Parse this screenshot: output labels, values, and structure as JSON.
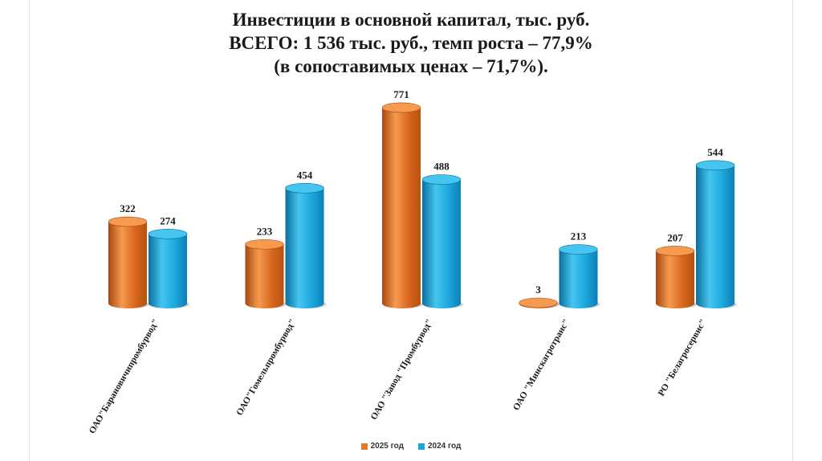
{
  "chart_data": {
    "type": "bar",
    "title_lines": [
      "Инвестиции в основной капитал, тыс. руб.",
      "ВСЕГО: 1 536 тыс. руб., темп роста – 77,9%",
      "(в сопоставимых ценах – 71,7%)."
    ],
    "categories": [
      "ОАО\"Барановичипромбурвод\"",
      "ОАО\"Гомельпромбурвод\"",
      "ОАО \"Завод \"Промбурвод\"",
      "ОАО \"Минскагротранс\"",
      "РО \"Белагросервис\""
    ],
    "series": [
      {
        "name": "2025 год",
        "values": [
          322,
          233,
          771,
          3,
          207
        ]
      },
      {
        "name": "2024 год",
        "values": [
          274,
          454,
          488,
          213,
          544
        ]
      }
    ],
    "ylim": [
      0,
      800
    ],
    "grid": false,
    "legend_position": "bottom",
    "colors": {
      "2025 год": "#e8782a",
      "2024 год": "#1aa8dc"
    },
    "xlabel": "",
    "ylabel": ""
  }
}
